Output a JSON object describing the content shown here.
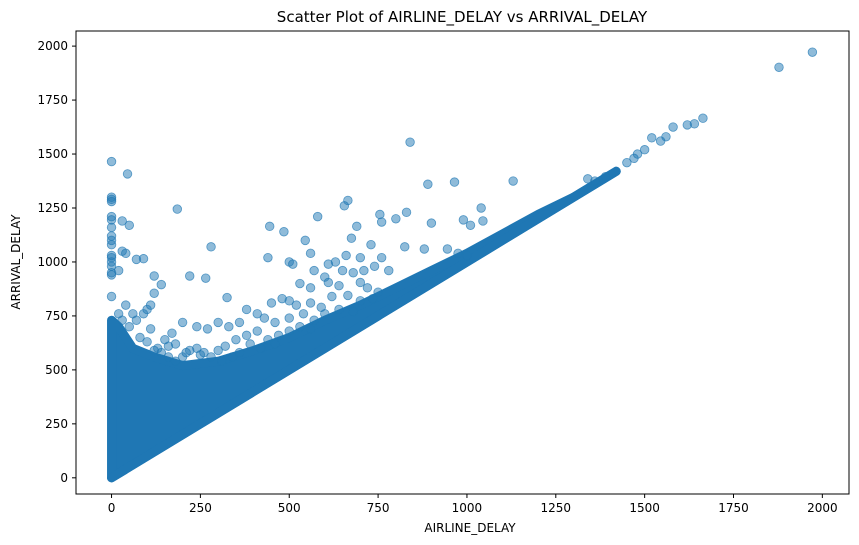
{
  "chart_data": {
    "type": "scatter",
    "title": "Scatter Plot of AIRLINE_DELAY vs ARRIVAL_DELAY",
    "xlabel": "AIRLINE_DELAY",
    "ylabel": "ARRIVAL_DELAY",
    "xlim": [
      -100,
      2075
    ],
    "ylim": [
      -75,
      2070
    ],
    "xticks": [
      0,
      250,
      500,
      750,
      1000,
      1250,
      1500,
      1750,
      2000
    ],
    "yticks": [
      0,
      250,
      500,
      750,
      1000,
      1250,
      1500,
      1750,
      2000
    ],
    "grid": false,
    "color": "#1f77b4",
    "alpha": 0.5,
    "dense_region": {
      "description_free_polygon": [
        [
          0,
          0
        ],
        [
          0,
          730
        ],
        [
          20,
          700
        ],
        [
          60,
          600
        ],
        [
          120,
          560
        ],
        [
          200,
          520
        ],
        [
          300,
          540
        ],
        [
          400,
          590
        ],
        [
          500,
          650
        ],
        [
          600,
          730
        ],
        [
          700,
          800
        ],
        [
          800,
          880
        ],
        [
          900,
          960
        ],
        [
          1000,
          1040
        ],
        [
          1100,
          1130
        ],
        [
          1200,
          1220
        ],
        [
          1300,
          1300
        ],
        [
          1400,
          1400
        ],
        [
          1420,
          1420
        ],
        [
          0,
          0
        ]
      ],
      "diagonal_band": [
        [
          0,
          0
        ],
        [
          1420,
          1420
        ]
      ]
    },
    "points": [
      [
        1972,
        1972
      ],
      [
        1878,
        1902
      ],
      [
        1664,
        1666
      ],
      [
        1640,
        1640
      ],
      [
        1620,
        1635
      ],
      [
        1580,
        1625
      ],
      [
        1560,
        1580
      ],
      [
        1545,
        1560
      ],
      [
        1520,
        1575
      ],
      [
        1500,
        1520
      ],
      [
        1480,
        1500
      ],
      [
        1470,
        1480
      ],
      [
        1450,
        1460
      ],
      [
        1390,
        1395
      ],
      [
        1360,
        1375
      ],
      [
        1340,
        1385
      ],
      [
        0,
        1465
      ],
      [
        45,
        1408
      ],
      [
        0,
        1300
      ],
      [
        0,
        1290
      ],
      [
        0,
        1280
      ],
      [
        0,
        1210
      ],
      [
        0,
        1195
      ],
      [
        30,
        1190
      ],
      [
        50,
        1170
      ],
      [
        0,
        1160
      ],
      [
        0,
        1120
      ],
      [
        0,
        1100
      ],
      [
        0,
        1080
      ],
      [
        30,
        1050
      ],
      [
        40,
        1040
      ],
      [
        0,
        1030
      ],
      [
        0,
        1020
      ],
      [
        90,
        1015
      ],
      [
        70,
        1012
      ],
      [
        0,
        1000
      ],
      [
        0,
        980
      ],
      [
        20,
        960
      ],
      [
        0,
        950
      ],
      [
        0,
        940
      ],
      [
        120,
        935
      ],
      [
        140,
        895
      ],
      [
        120,
        855
      ],
      [
        220,
        935
      ],
      [
        265,
        925
      ],
      [
        280,
        1070
      ],
      [
        185,
        1245
      ],
      [
        325,
        835
      ],
      [
        0,
        840
      ],
      [
        840,
        1555
      ],
      [
        890,
        1360
      ],
      [
        965,
        1370
      ],
      [
        1130,
        1375
      ],
      [
        1040,
        1250
      ],
      [
        665,
        1285
      ],
      [
        655,
        1260
      ],
      [
        755,
        1220
      ],
      [
        830,
        1230
      ],
      [
        580,
        1210
      ],
      [
        445,
        1165
      ],
      [
        485,
        1140
      ],
      [
        690,
        1165
      ],
      [
        760,
        1185
      ],
      [
        800,
        1200
      ],
      [
        900,
        1180
      ],
      [
        990,
        1195
      ],
      [
        1010,
        1170
      ],
      [
        1045,
        1190
      ],
      [
        545,
        1100
      ],
      [
        675,
        1110
      ],
      [
        730,
        1080
      ],
      [
        825,
        1070
      ],
      [
        880,
        1060
      ],
      [
        945,
        1060
      ],
      [
        975,
        1040
      ],
      [
        1000,
        1030
      ],
      [
        560,
        1040
      ],
      [
        630,
        1000
      ],
      [
        660,
        1030
      ],
      [
        700,
        1020
      ],
      [
        740,
        980
      ],
      [
        780,
        960
      ],
      [
        500,
        1000
      ],
      [
        510,
        990
      ],
      [
        440,
        1020
      ],
      [
        610,
        990
      ],
      [
        760,
        1020
      ],
      [
        570,
        960
      ],
      [
        600,
        930
      ],
      [
        650,
        960
      ],
      [
        680,
        950
      ],
      [
        710,
        960
      ],
      [
        530,
        900
      ],
      [
        560,
        880
      ],
      [
        610,
        905
      ],
      [
        640,
        890
      ],
      [
        700,
        905
      ],
      [
        720,
        880
      ],
      [
        750,
        860
      ],
      [
        450,
        810
      ],
      [
        480,
        830
      ],
      [
        500,
        820
      ],
      [
        520,
        800
      ],
      [
        560,
        810
      ],
      [
        590,
        790
      ],
      [
        620,
        840
      ],
      [
        665,
        845
      ],
      [
        700,
        820
      ],
      [
        735,
        830
      ],
      [
        380,
        780
      ],
      [
        410,
        760
      ],
      [
        430,
        740
      ],
      [
        460,
        720
      ],
      [
        500,
        740
      ],
      [
        540,
        760
      ],
      [
        570,
        730
      ],
      [
        600,
        760
      ],
      [
        640,
        780
      ],
      [
        680,
        770
      ],
      [
        360,
        720
      ],
      [
        330,
        700
      ],
      [
        300,
        720
      ],
      [
        270,
        690
      ],
      [
        240,
        700
      ],
      [
        200,
        720
      ],
      [
        170,
        670
      ],
      [
        150,
        640
      ],
      [
        110,
        690
      ],
      [
        100,
        630
      ],
      [
        80,
        650
      ],
      [
        60,
        760
      ],
      [
        50,
        700
      ],
      [
        70,
        730
      ],
      [
        90,
        760
      ],
      [
        100,
        780
      ],
      [
        110,
        800
      ],
      [
        40,
        800
      ],
      [
        20,
        760
      ],
      [
        30,
        730
      ],
      [
        240,
        600
      ],
      [
        260,
        580
      ],
      [
        220,
        590
      ],
      [
        180,
        620
      ],
      [
        160,
        610
      ],
      [
        130,
        600
      ],
      [
        320,
        610
      ],
      [
        350,
        640
      ],
      [
        380,
        660
      ],
      [
        410,
        680
      ],
      [
        440,
        640
      ],
      [
        470,
        660
      ],
      [
        340,
        560
      ],
      [
        300,
        590
      ],
      [
        280,
        560
      ],
      [
        250,
        570
      ],
      [
        310,
        540
      ],
      [
        360,
        580
      ],
      [
        420,
        600
      ],
      [
        460,
        620
      ],
      [
        390,
        620
      ],
      [
        500,
        680
      ],
      [
        530,
        700
      ],
      [
        560,
        690
      ],
      [
        160,
        560
      ],
      [
        140,
        580
      ],
      [
        120,
        590
      ],
      [
        180,
        540
      ],
      [
        200,
        560
      ],
      [
        210,
        580
      ]
    ]
  }
}
